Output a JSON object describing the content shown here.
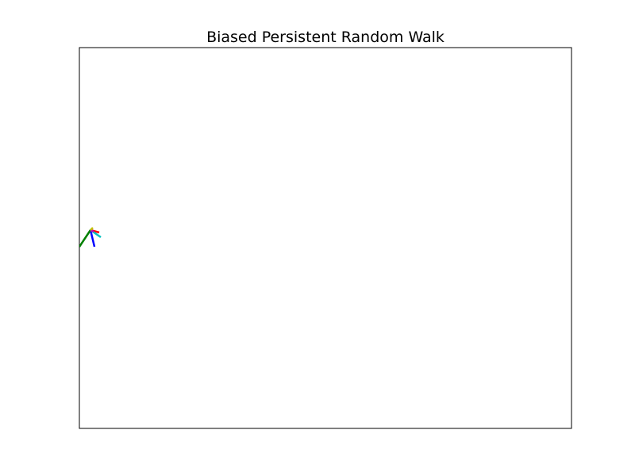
{
  "chart_data": {
    "type": "line",
    "title": "Biased Persistent Random Walk",
    "xlabel": "",
    "ylabel": "",
    "axes_visible": false,
    "xlim": [
      0,
      310
    ],
    "ylim": [
      -120,
      120
    ],
    "grid": false,
    "legend": "none",
    "series": [
      {
        "color": "#0000ff",
        "x": [
          7.0,
          9.5
        ],
        "y": [
          5.0,
          -5.5
        ]
      },
      {
        "color": "#008000",
        "x": [
          7.0,
          0.0
        ],
        "y": [
          5.0,
          -5.5
        ]
      },
      {
        "color": "#ff0000",
        "x": [
          7.0,
          12.5
        ],
        "y": [
          5.0,
          3.5
        ]
      },
      {
        "color": "#00bfbf",
        "x": [
          7.0,
          13.5
        ],
        "y": [
          5.0,
          0.5
        ]
      },
      {
        "color": "#bf00bf",
        "x": [
          7.0,
          9.0
        ],
        "y": [
          5.0,
          4.0
        ]
      },
      {
        "color": "#bfbf00",
        "x": [
          7.0,
          8.5
        ],
        "y": [
          5.0,
          6.5
        ]
      }
    ]
  }
}
